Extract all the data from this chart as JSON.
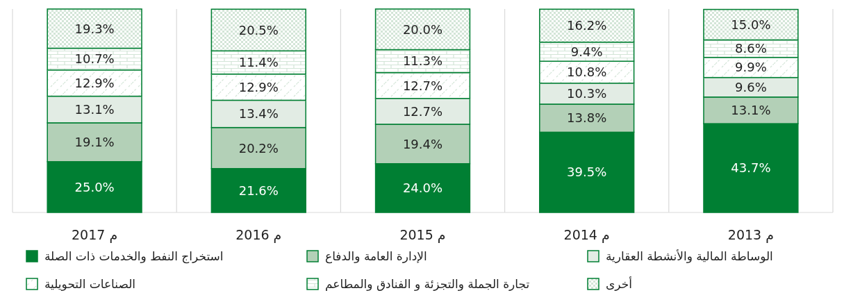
{
  "chart_data": {
    "type": "bar",
    "stacked": true,
    "categories": [
      "2017 م",
      "2016 م",
      "2015 م",
      "2014 م",
      "2013 م"
    ],
    "grid": "x",
    "legend": "bottom",
    "series": [
      {
        "name": "استخراج النفط والخدمات ذات الصلة",
        "color": "#007f33",
        "values": [
          25.0,
          21.6,
          24.0,
          39.5,
          43.7
        ],
        "value_labels": [
          "25.0%",
          "21.6%",
          "24.0%",
          "39.5%",
          "43.7%"
        ]
      },
      {
        "name": "الإدارة العامة والدفاع",
        "color": "#b3d0b7",
        "values": [
          19.1,
          20.2,
          19.4,
          13.8,
          13.1
        ],
        "value_labels": [
          "19.1%",
          "20.2%",
          "19.4%",
          "13.8%",
          "13.1%"
        ]
      },
      {
        "name": "الوساطة المالية والأنشطة العقارية",
        "color": "#e2ece4",
        "values": [
          13.1,
          13.4,
          12.7,
          10.3,
          9.6
        ],
        "value_labels": [
          "13.1%",
          "13.4%",
          "12.7%",
          "10.3%",
          "9.6%"
        ]
      },
      {
        "name": "الصناعات التحويلية",
        "color": "#d3e5d7",
        "values": [
          12.9,
          12.9,
          12.7,
          10.8,
          9.9
        ],
        "value_labels": [
          "12.9%",
          "12.9%",
          "12.7%",
          "10.8%",
          "9.9%"
        ]
      },
      {
        "name": "تجارة الجملة والتجزئة و الفنادق والمطاعم",
        "color": "#d3e5d7",
        "values": [
          10.7,
          11.4,
          11.3,
          9.4,
          8.6
        ],
        "value_labels": [
          "10.7%",
          "11.4%",
          "11.3%",
          "9.4%",
          "8.6%"
        ]
      },
      {
        "name": "أخرى",
        "color": "#d3e5d7",
        "values": [
          19.3,
          20.5,
          20.0,
          16.2,
          15.0
        ],
        "value_labels": [
          "19.3%",
          "20.5%",
          "20.0%",
          "16.2%",
          "15.0%"
        ]
      }
    ]
  }
}
